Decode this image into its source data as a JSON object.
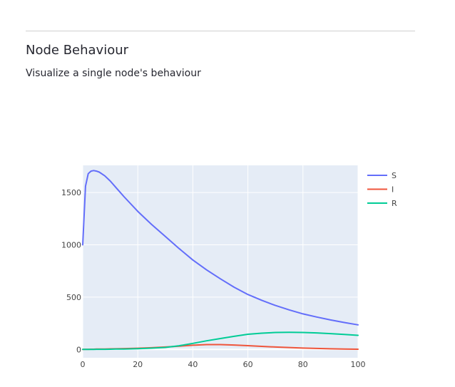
{
  "header": {
    "title": "Node Behaviour",
    "subtitle": "Visualize a single node's behaviour"
  },
  "chart_data": {
    "type": "line",
    "title": "",
    "xlabel": "",
    "ylabel": "",
    "xlim": [
      0,
      100
    ],
    "ylim": [
      -80,
      1760
    ],
    "grid": true,
    "legend_position": "top-right",
    "plot_background": "#e5ecf6",
    "x_ticks": [
      0,
      20,
      40,
      60,
      80,
      100
    ],
    "y_ticks": [
      0,
      500,
      1000,
      1500
    ],
    "x": [
      0,
      1,
      2,
      3,
      4,
      5,
      6,
      8,
      10,
      12,
      15,
      20,
      25,
      30,
      35,
      40,
      45,
      50,
      55,
      60,
      65,
      70,
      75,
      80,
      85,
      90,
      95,
      100
    ],
    "series": [
      {
        "name": "S",
        "color": "#636efa",
        "values": [
          1000,
          1560,
          1680,
          1705,
          1710,
          1705,
          1695,
          1660,
          1610,
          1550,
          1460,
          1320,
          1195,
          1080,
          965,
          855,
          760,
          675,
          595,
          525,
          470,
          420,
          378,
          340,
          310,
          282,
          257,
          235
        ]
      },
      {
        "name": "I",
        "color": "#ef553b",
        "values": [
          0,
          1,
          1,
          2,
          2,
          3,
          3,
          4,
          5,
          6,
          8,
          11,
          16,
          23,
          31,
          40,
          46,
          46,
          42,
          36,
          29,
          23,
          18,
          13,
          9,
          6,
          4,
          2
        ]
      },
      {
        "name": "R",
        "color": "#00cc96",
        "values": [
          0,
          0,
          0,
          0,
          0,
          1,
          1,
          1,
          2,
          3,
          4,
          7,
          12,
          19,
          35,
          58,
          82,
          104,
          125,
          145,
          155,
          162,
          163,
          162,
          158,
          151,
          143,
          135
        ]
      }
    ]
  }
}
